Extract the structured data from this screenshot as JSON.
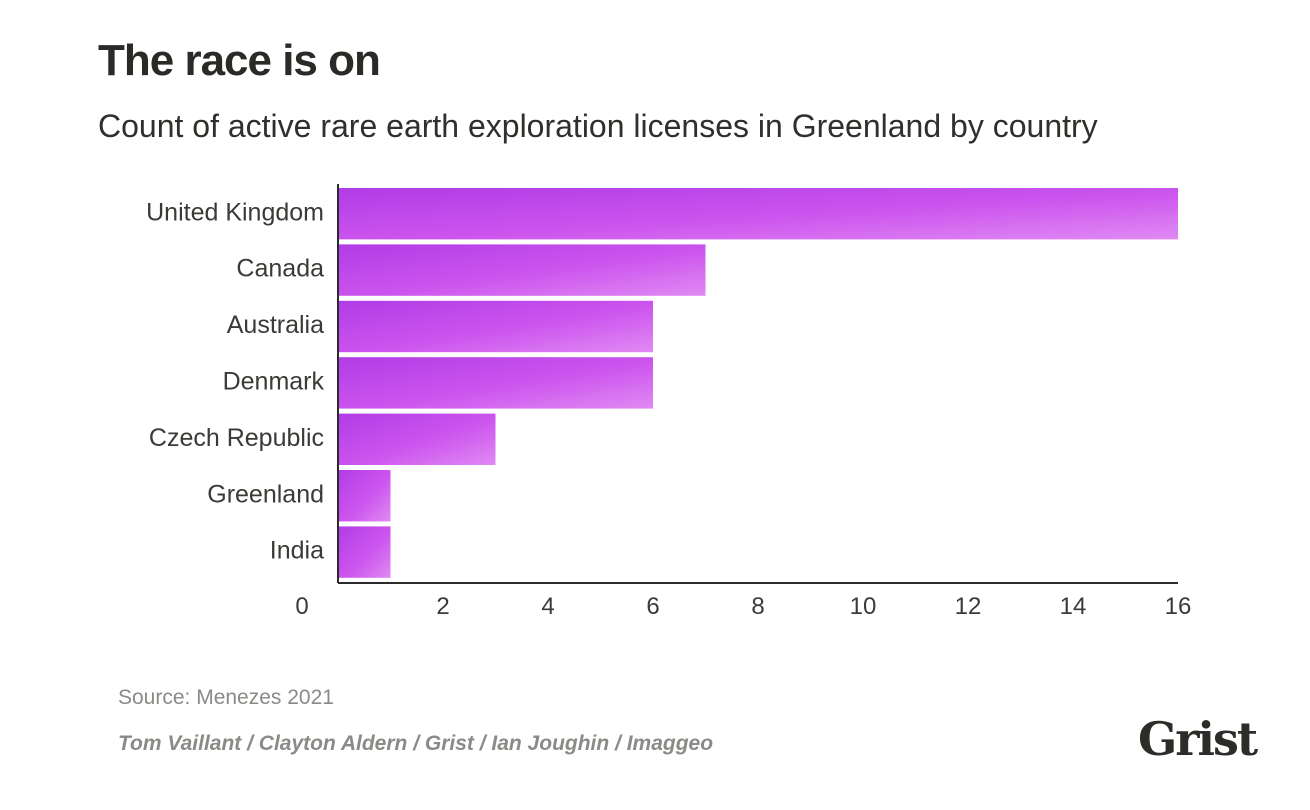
{
  "header": {
    "title": "The race is on",
    "subtitle": "Count of active rare earth exploration licenses in Greenland by country"
  },
  "footer": {
    "source": "Source: Menezes 2021",
    "credits": "Tom Vaillant / Clayton Aldern / Grist / Ian Joughin / Imaggeo",
    "logo": "Grist"
  },
  "chart_data": {
    "type": "bar",
    "orientation": "horizontal",
    "title": "The race is on",
    "subtitle": "Count of active rare earth exploration licenses in Greenland by country",
    "categories": [
      "United Kingdom",
      "Canada",
      "Australia",
      "Denmark",
      "Czech Republic",
      "Greenland",
      "India"
    ],
    "values": [
      16,
      7,
      6,
      6,
      3,
      1,
      1
    ],
    "xlim": [
      0,
      16
    ],
    "x_ticks": [
      0,
      2,
      4,
      6,
      8,
      10,
      12,
      14,
      16
    ],
    "xlabel": "",
    "ylabel": "",
    "grid": false,
    "legend": "none",
    "bar_color": "#cc55ee",
    "bar_color_light": "#e08af3",
    "bar_color_dark": "#b23ce6"
  }
}
